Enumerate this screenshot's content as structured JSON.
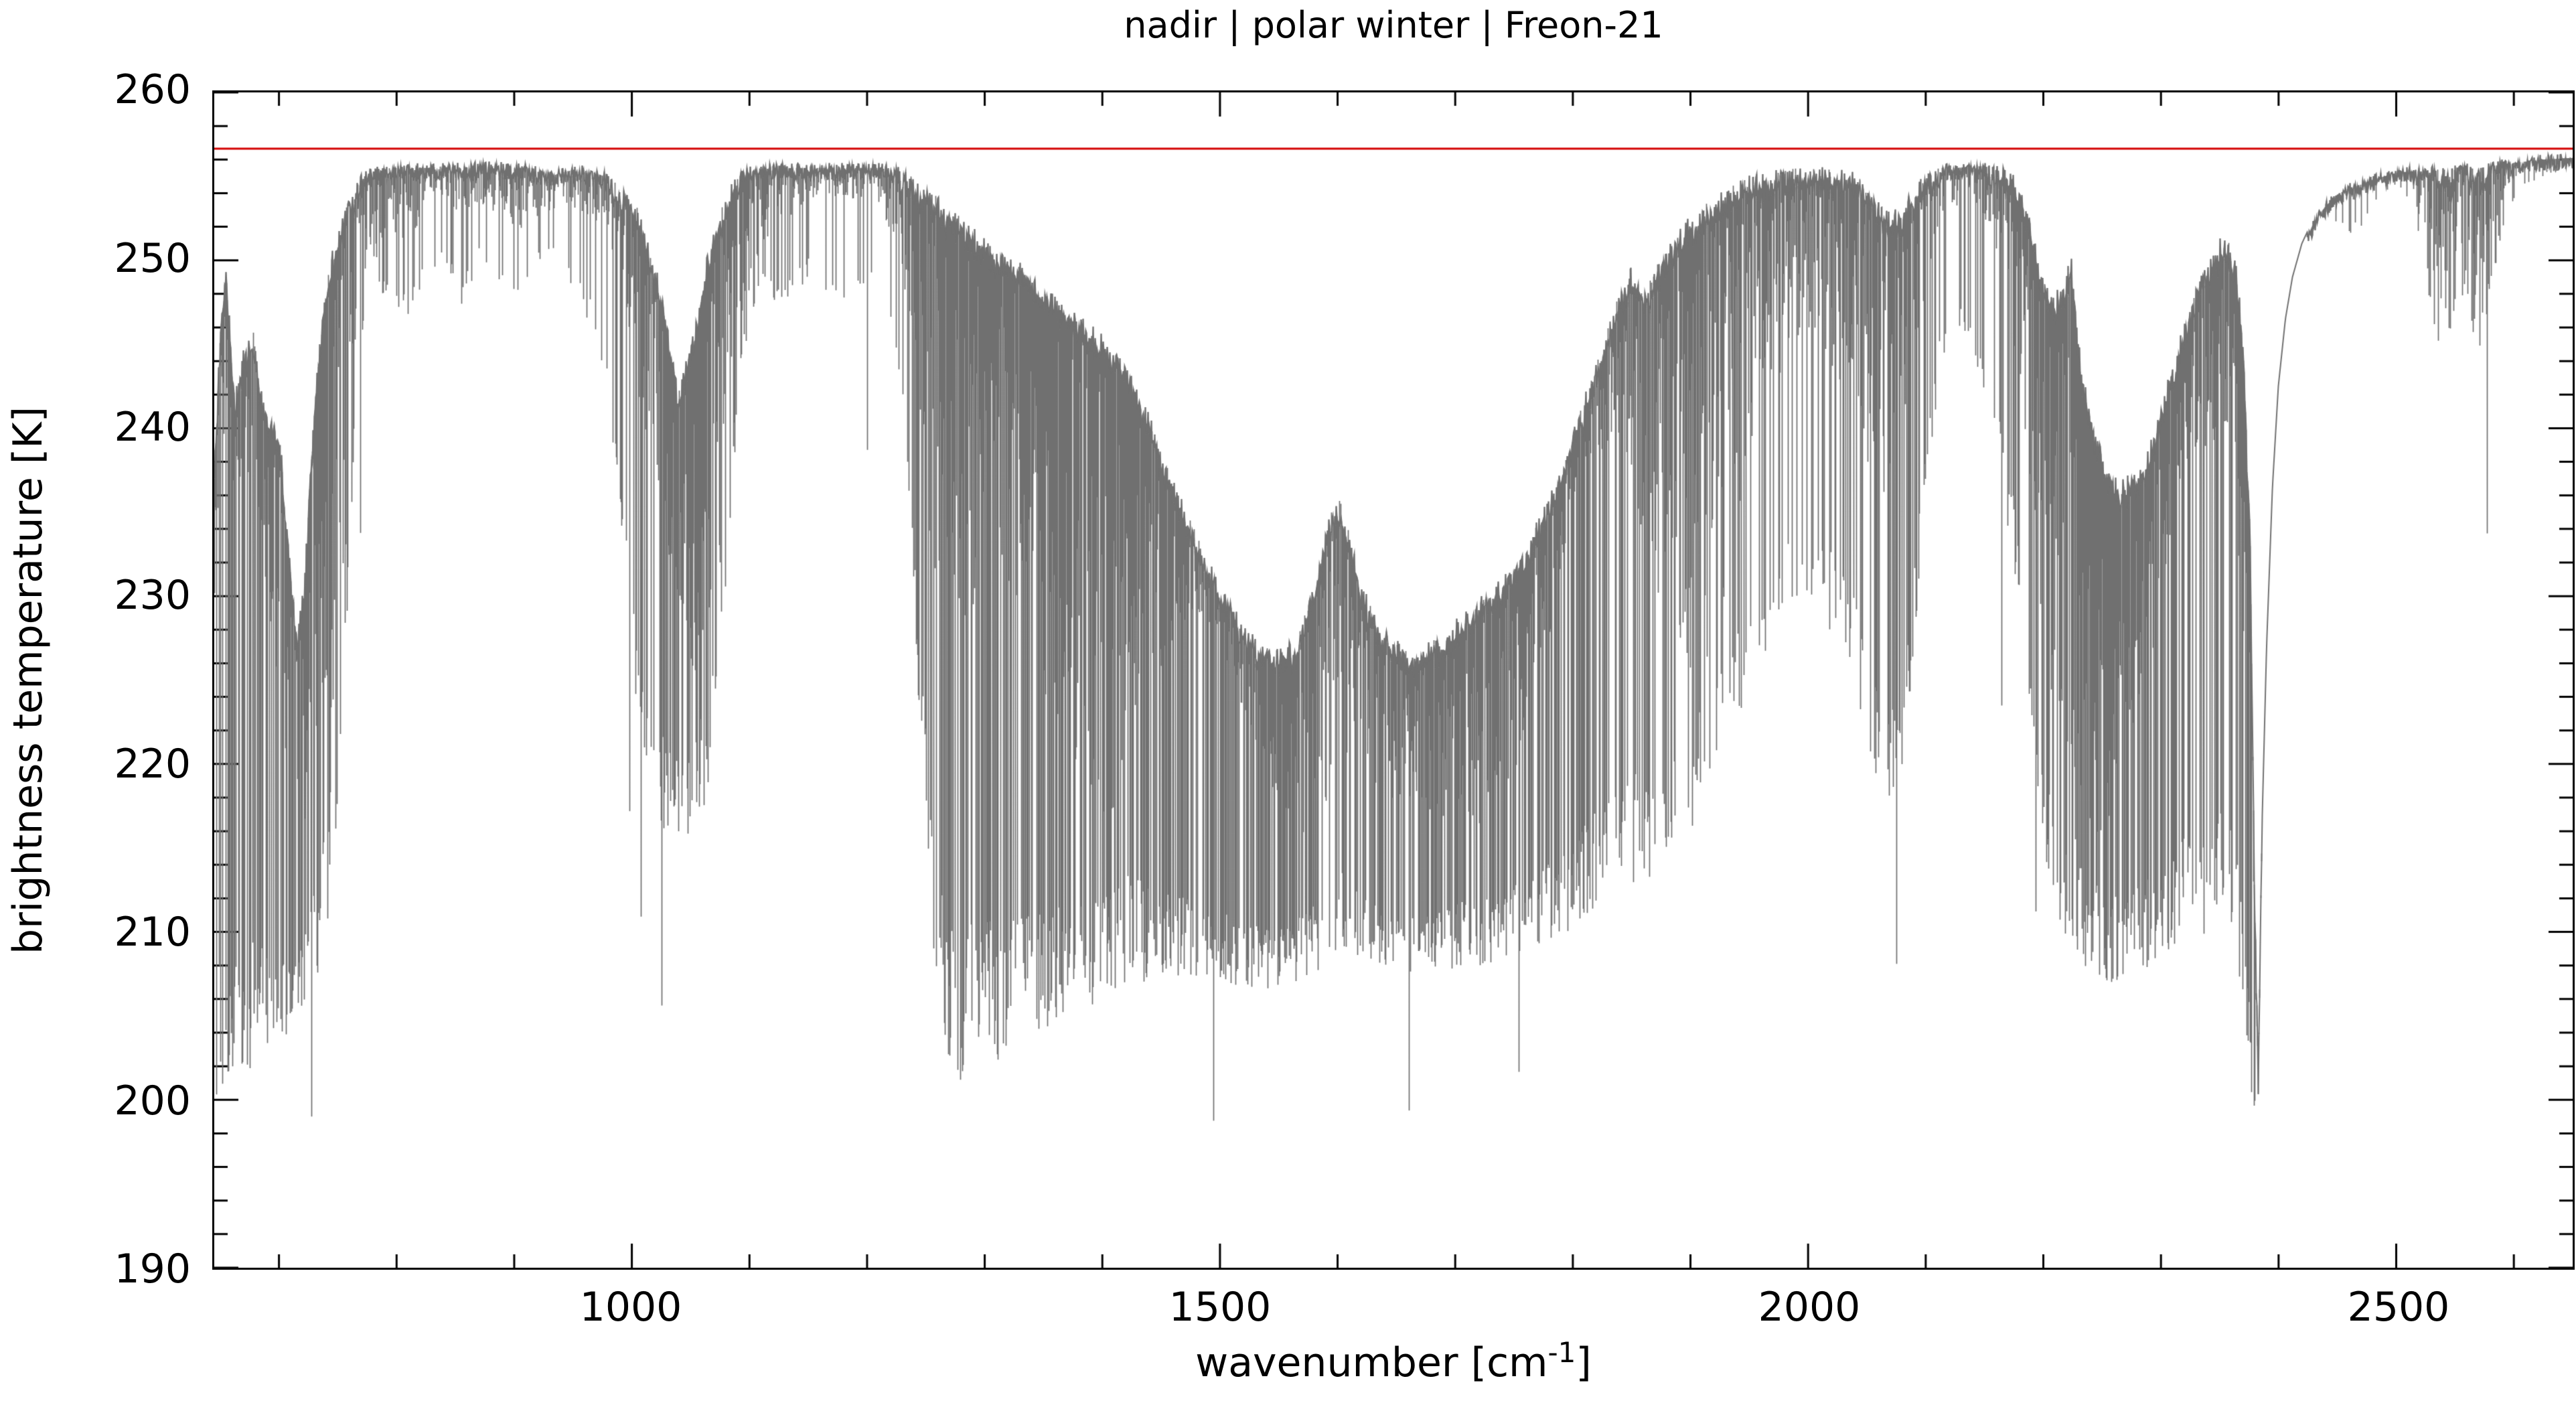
{
  "title": "nadir | polar winter | Freon-21",
  "axes": {
    "x": {
      "label_pre": "wavenumber [cm",
      "label_sup": "-1",
      "label_post": "]",
      "range": [
        645,
        2650
      ],
      "major_ticks": [
        1000,
        1500,
        2000,
        2500
      ],
      "major_tick_labels": [
        "1000",
        "1500",
        "2000",
        "2500"
      ],
      "minor_start": 700,
      "minor_step": 100
    },
    "y": {
      "label": "brightness temperature [K]",
      "range": [
        190,
        260
      ],
      "major_step": 10,
      "minor_step": 2,
      "major_tick_labels": [
        "260",
        "250",
        "240",
        "230",
        "220",
        "210",
        "200",
        "190"
      ],
      "major_tick_values": [
        260,
        250,
        240,
        230,
        220,
        210,
        200,
        190
      ]
    }
  },
  "colors": {
    "background": "#ffffff",
    "axis": "#000000",
    "spectrum": "#707070",
    "reference_line": "#d40000"
  },
  "chart_data": {
    "type": "line",
    "title": "nadir | polar winter | Freon-21",
    "xlabel": "wavenumber [cm-1]",
    "ylabel": "brightness temperature [K]",
    "xlim": [
      645,
      2650
    ],
    "ylim": [
      190,
      260
    ],
    "grid": false,
    "legend": "none",
    "baseline": {
      "value": 256.65,
      "color": "#d40000"
    },
    "line_color": "#707070",
    "series_description": "high-resolution nadir brightness-temperature spectrum; envelope given as [wavenumber cm-1, top K, bottom K, roughness 0..1 (0 = smooth single line)]",
    "envelope_columns": [
      "wavenumber",
      "top_K",
      "bottom_K",
      "roughness"
    ],
    "envelope": [
      [
        645,
        238,
        200,
        0.95
      ],
      [
        650,
        247,
        200,
        0.95
      ],
      [
        655,
        250,
        201,
        0.9
      ],
      [
        662,
        242,
        201,
        0.9
      ],
      [
        670,
        245,
        201,
        0.9
      ],
      [
        678,
        246,
        202,
        0.9
      ],
      [
        686,
        242,
        202,
        0.9
      ],
      [
        694,
        241,
        203,
        0.9
      ],
      [
        702,
        239,
        203,
        0.9
      ],
      [
        708,
        233,
        204,
        0.92
      ],
      [
        715,
        228,
        204,
        0.92
      ],
      [
        722,
        232,
        205,
        0.92
      ],
      [
        730,
        242,
        206,
        0.85
      ],
      [
        738,
        248,
        209,
        0.7
      ],
      [
        746,
        251,
        213,
        0.6
      ],
      [
        754,
        253,
        222,
        0.5
      ],
      [
        762,
        254.3,
        236,
        0.4
      ],
      [
        770,
        255.2,
        245,
        0.28
      ],
      [
        780,
        255.6,
        247,
        0.22
      ],
      [
        795,
        255.8,
        248,
        0.2
      ],
      [
        810,
        255.8,
        246,
        0.22
      ],
      [
        825,
        255.8,
        249,
        0.18
      ],
      [
        840,
        255.9,
        250,
        0.18
      ],
      [
        855,
        255.8,
        247,
        0.22
      ],
      [
        870,
        255.9,
        250,
        0.16
      ],
      [
        885,
        255.9,
        249,
        0.18
      ],
      [
        900,
        255.8,
        247,
        0.2
      ],
      [
        915,
        255.8,
        249,
        0.16
      ],
      [
        928,
        255.3,
        250,
        0.15
      ],
      [
        935,
        255.4,
        250,
        0.15
      ],
      [
        950,
        255.7,
        248,
        0.18
      ],
      [
        965,
        255.6,
        246,
        0.2
      ],
      [
        980,
        255.2,
        241,
        0.3
      ],
      [
        992,
        254.6,
        232,
        0.45
      ],
      [
        1004,
        253.5,
        222,
        0.6
      ],
      [
        1016,
        251,
        217,
        0.75
      ],
      [
        1028,
        247.5,
        216,
        0.85
      ],
      [
        1040,
        242.5,
        215.5,
        0.92
      ],
      [
        1052,
        246,
        216,
        0.85
      ],
      [
        1064,
        250.5,
        218,
        0.75
      ],
      [
        1075,
        253.2,
        224,
        0.55
      ],
      [
        1085,
        254.8,
        236,
        0.4
      ],
      [
        1095,
        255.5,
        244,
        0.25
      ],
      [
        1110,
        255.8,
        248,
        0.18
      ],
      [
        1130,
        255.8,
        247,
        0.2
      ],
      [
        1150,
        255.8,
        249,
        0.16
      ],
      [
        1170,
        255.8,
        247,
        0.2
      ],
      [
        1190,
        255.8,
        248,
        0.18
      ],
      [
        1210,
        255.8,
        248,
        0.18
      ],
      [
        1228,
        255.6,
        243,
        0.3
      ],
      [
        1240,
        255.2,
        228,
        0.5
      ],
      [
        1252,
        254.5,
        212,
        0.65
      ],
      [
        1264,
        253.8,
        203,
        0.72
      ],
      [
        1280,
        252.8,
        201,
        0.75
      ],
      [
        1300,
        251.5,
        202,
        0.78
      ],
      [
        1320,
        250.5,
        202,
        0.8
      ],
      [
        1340,
        249.5,
        203,
        0.8
      ],
      [
        1360,
        248.2,
        204,
        0.8
      ],
      [
        1380,
        247,
        205,
        0.8
      ],
      [
        1400,
        246,
        206,
        0.82
      ],
      [
        1420,
        244,
        207,
        0.82
      ],
      [
        1440,
        241,
        207,
        0.85
      ],
      [
        1460,
        237,
        207,
        0.85
      ],
      [
        1480,
        234,
        207,
        0.88
      ],
      [
        1500,
        231,
        207,
        0.88
      ],
      [
        1520,
        228.5,
        206.5,
        0.9
      ],
      [
        1545,
        227,
        206.5,
        0.9
      ],
      [
        1565,
        227.5,
        207,
        0.9
      ],
      [
        1580,
        231,
        207.5,
        0.85
      ],
      [
        1592,
        235,
        208,
        0.7
      ],
      [
        1602,
        236,
        209,
        0.6
      ],
      [
        1612,
        233.5,
        208.5,
        0.75
      ],
      [
        1625,
        230,
        208,
        0.85
      ],
      [
        1645,
        228,
        207.5,
        0.9
      ],
      [
        1665,
        227,
        207.5,
        0.9
      ],
      [
        1685,
        227.8,
        207.5,
        0.9
      ],
      [
        1705,
        229,
        208,
        0.9
      ],
      [
        1725,
        230.5,
        208,
        0.88
      ],
      [
        1745,
        231.5,
        208.5,
        0.88
      ],
      [
        1765,
        233.8,
        209,
        0.85
      ],
      [
        1785,
        237,
        209.5,
        0.82
      ],
      [
        1805,
        241,
        210.5,
        0.78
      ],
      [
        1822,
        244.5,
        211.5,
        0.72
      ],
      [
        1838,
        248,
        212,
        0.6
      ],
      [
        1850,
        250,
        213,
        0.55
      ],
      [
        1862,
        248.5,
        212.5,
        0.6
      ],
      [
        1875,
        250.5,
        213.5,
        0.55
      ],
      [
        1890,
        252,
        215,
        0.5
      ],
      [
        1905,
        253.2,
        216.5,
        0.45
      ],
      [
        1920,
        254,
        218,
        0.42
      ],
      [
        1935,
        254.7,
        221,
        0.4
      ],
      [
        1950,
        255.2,
        224,
        0.4
      ],
      [
        1965,
        255.5,
        226,
        0.38
      ],
      [
        1980,
        255.7,
        228,
        0.35
      ],
      [
        1995,
        255.8,
        229,
        0.35
      ],
      [
        2010,
        255.7,
        229,
        0.35
      ],
      [
        2025,
        255.7,
        227,
        0.38
      ],
      [
        2040,
        255.4,
        225,
        0.42
      ],
      [
        2052,
        254.6,
        220,
        0.55
      ],
      [
        2064,
        253.4,
        217.5,
        0.68
      ],
      [
        2076,
        253.2,
        218,
        0.66
      ],
      [
        2088,
        254.3,
        224,
        0.55
      ],
      [
        2100,
        255.4,
        236,
        0.4
      ],
      [
        2112,
        255.8,
        243,
        0.3
      ],
      [
        2126,
        255.8,
        245.5,
        0.28
      ],
      [
        2140,
        255.9,
        245,
        0.28
      ],
      [
        2152,
        255.9,
        241,
        0.3
      ],
      [
        2164,
        255.8,
        237,
        0.33
      ],
      [
        2176,
        255.4,
        231,
        0.4
      ],
      [
        2186,
        253.5,
        224,
        0.55
      ],
      [
        2196,
        250.5,
        216,
        0.7
      ],
      [
        2206,
        248,
        212,
        0.8
      ],
      [
        2216,
        248.5,
        210,
        0.85
      ],
      [
        2224,
        250.5,
        209,
        0.85
      ],
      [
        2232,
        244,
        208,
        0.9
      ],
      [
        2242,
        240.5,
        207.5,
        0.93
      ],
      [
        2252,
        238.5,
        207,
        0.95
      ],
      [
        2265,
        237,
        207,
        0.95
      ],
      [
        2278,
        237.5,
        207.5,
        0.95
      ],
      [
        2292,
        239.5,
        208,
        0.95
      ],
      [
        2306,
        243,
        208.5,
        0.93
      ],
      [
        2320,
        246.5,
        209,
        0.9
      ],
      [
        2334,
        249.5,
        209.5,
        0.88
      ],
      [
        2346,
        251,
        210,
        0.85
      ],
      [
        2355,
        251.8,
        211,
        0.85
      ],
      [
        2363,
        250.5,
        208,
        0.88
      ],
      [
        2370,
        246,
        203,
        0.92
      ],
      [
        2376,
        234,
        199.5,
        0.96
      ],
      [
        2380,
        212,
        199,
        0.97
      ],
      [
        2383,
        202,
        198.8,
        0.9
      ],
      [
        2386,
        216,
        216,
        0
      ],
      [
        2390,
        227,
        227,
        0
      ],
      [
        2395,
        236.5,
        236.5,
        0
      ],
      [
        2400,
        242.5,
        242.5,
        0
      ],
      [
        2406,
        246.5,
        246.5,
        0
      ],
      [
        2412,
        249,
        249,
        0
      ],
      [
        2420,
        251,
        251,
        0
      ],
      [
        2430,
        252.5,
        252.2,
        0.05
      ],
      [
        2440,
        253.5,
        252.8,
        0.06
      ],
      [
        2450,
        254.2,
        252,
        0.12
      ],
      [
        2460,
        254.6,
        251.5,
        0.14
      ],
      [
        2470,
        254.8,
        252,
        0.12
      ],
      [
        2480,
        255.1,
        253,
        0.1
      ],
      [
        2490,
        255.3,
        254,
        0.08
      ],
      [
        2500,
        255.5,
        254.5,
        0.06
      ],
      [
        2512,
        255.6,
        253.5,
        0.1
      ],
      [
        2524,
        255.6,
        249.5,
        0.2
      ],
      [
        2534,
        255.7,
        245.5,
        0.3
      ],
      [
        2542,
        255.7,
        243.5,
        0.35
      ],
      [
        2550,
        255.8,
        246,
        0.3
      ],
      [
        2558,
        255.8,
        247.5,
        0.28
      ],
      [
        2566,
        255.8,
        245,
        0.33
      ],
      [
        2572,
        255.8,
        244.5,
        0.35
      ],
      [
        2580,
        255.9,
        248,
        0.28
      ],
      [
        2590,
        256,
        251.5,
        0.2
      ],
      [
        2600,
        256.1,
        253.5,
        0.15
      ],
      [
        2612,
        256.2,
        254.5,
        0.12
      ],
      [
        2625,
        256.3,
        255,
        0.1
      ],
      [
        2638,
        256.35,
        255.3,
        0.1
      ],
      [
        2650,
        256.4,
        255.5,
        0.1
      ]
    ]
  }
}
